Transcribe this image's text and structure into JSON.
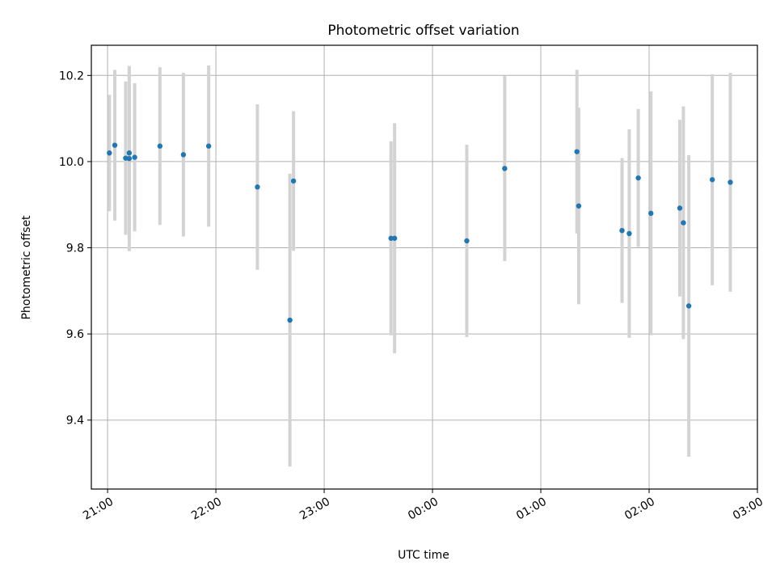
{
  "chart_data": {
    "type": "scatter",
    "title": "Photometric offset variation",
    "xlabel": "UTC time",
    "ylabel": "Photometric offset",
    "x_axis_kind": "time",
    "xlim": [
      "20:51",
      "03:00"
    ],
    "ylim": [
      9.24,
      10.27
    ],
    "x_ticks": [
      "21:00",
      "22:00",
      "23:00",
      "00:00",
      "01:00",
      "02:00",
      "03:00"
    ],
    "y_ticks": [
      9.4,
      9.6,
      9.8,
      10.0,
      10.2
    ],
    "grid": true,
    "point_color": "#1f77b4",
    "errorbar_color": "#d3d3d3",
    "points": [
      {
        "time": "21:01",
        "y": 10.02,
        "err": 0.135
      },
      {
        "time": "21:04",
        "y": 10.038,
        "err": 0.175
      },
      {
        "time": "21:10",
        "y": 10.008,
        "err": 0.178
      },
      {
        "time": "21:12",
        "y": 10.007,
        "err": 0.215
      },
      {
        "time": "21:12",
        "y": 10.02,
        "err": 0.2
      },
      {
        "time": "21:15",
        "y": 10.01,
        "err": 0.172
      },
      {
        "time": "21:29",
        "y": 10.036,
        "err": 0.183
      },
      {
        "time": "21:42",
        "y": 10.016,
        "err": 0.19
      },
      {
        "time": "21:56",
        "y": 10.036,
        "err": 0.187
      },
      {
        "time": "22:23",
        "y": 9.941,
        "err": 0.192
      },
      {
        "time": "22:41",
        "y": 9.632,
        "err": 0.34
      },
      {
        "time": "22:43",
        "y": 9.955,
        "err": 0.162
      },
      {
        "time": "23:37",
        "y": 9.822,
        "err": 0.225
      },
      {
        "time": "23:39",
        "y": 9.822,
        "err": 0.267
      },
      {
        "time": "00:19",
        "y": 9.816,
        "err": 0.223
      },
      {
        "time": "00:40",
        "y": 9.984,
        "err": 0.215
      },
      {
        "time": "01:20",
        "y": 10.023,
        "err": 0.19
      },
      {
        "time": "01:21",
        "y": 9.897,
        "err": 0.228
      },
      {
        "time": "01:45",
        "y": 9.84,
        "err": 0.168
      },
      {
        "time": "01:49",
        "y": 9.833,
        "err": 0.242
      },
      {
        "time": "01:54",
        "y": 9.962,
        "err": 0.16
      },
      {
        "time": "02:01",
        "y": 9.88,
        "err": 0.283
      },
      {
        "time": "02:17",
        "y": 9.892,
        "err": 0.205
      },
      {
        "time": "02:19",
        "y": 9.858,
        "err": 0.27
      },
      {
        "time": "02:22",
        "y": 9.665,
        "err": 0.35
      },
      {
        "time": "02:35",
        "y": 9.958,
        "err": 0.245
      },
      {
        "time": "02:45",
        "y": 9.952,
        "err": 0.254
      }
    ]
  }
}
